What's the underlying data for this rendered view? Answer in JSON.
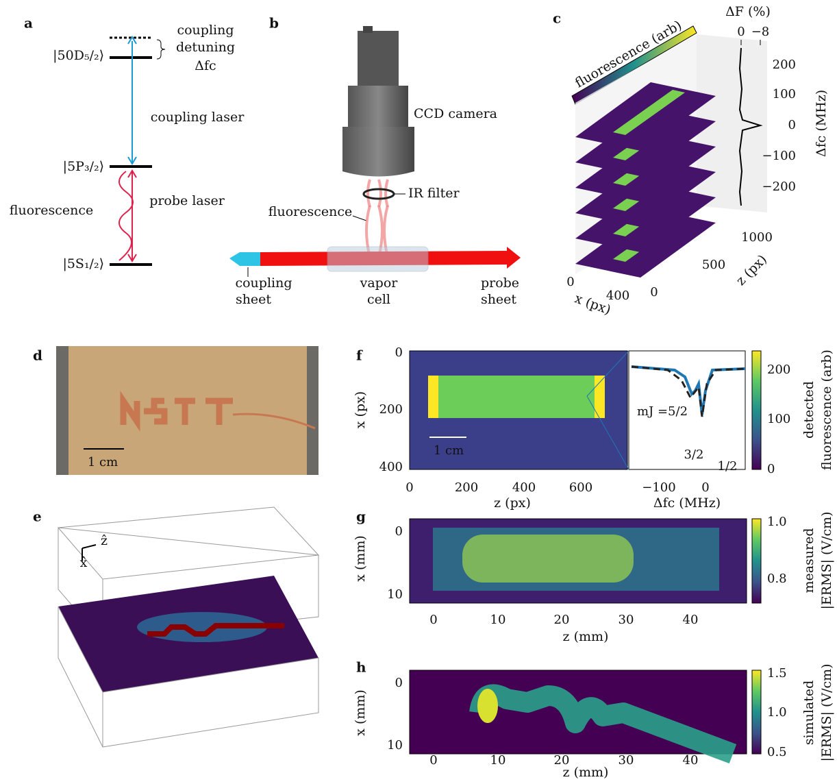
{
  "panels": {
    "a": {
      "label": "a",
      "states": [
        "|50D₅/₂⟩",
        "|5P₃/₂⟩",
        "|5S₁/₂⟩"
      ],
      "detuning_note": [
        "coupling",
        "detuning",
        "Δfc"
      ],
      "coupling_laser": "coupling laser",
      "probe_laser": "probe laser",
      "fluorescence": "fluorescence"
    },
    "b": {
      "label": "b",
      "camera": "CCD camera",
      "filter": "IR filter",
      "fluorescence": "fluorescence",
      "coupling_sheet": [
        "coupling",
        "sheet"
      ],
      "vapor_cell": [
        "vapor",
        "cell"
      ],
      "probe_sheet": [
        "probe",
        "sheet"
      ]
    },
    "c": {
      "label": "c",
      "colorbar_label": "fluorescence (arb)",
      "top_label": "ΔF (%)",
      "top_ticks": [
        "0",
        "−8"
      ],
      "y_ticks": [
        "200",
        "100",
        "0",
        "−100",
        "−200"
      ],
      "y_label": "Δfc (MHz)",
      "z_ticks": [
        "1000",
        "500",
        "0"
      ],
      "z_label": "z (px)",
      "x_ticks": [
        "0",
        "400"
      ],
      "x_label": "x (px)"
    },
    "d": {
      "label": "d",
      "scale_bar": "1 cm"
    },
    "e": {
      "label": "e",
      "z_axis": "ẑ",
      "x_axis": "x̂"
    },
    "f": {
      "label": "f",
      "y_ticks": [
        "0",
        "200",
        "400"
      ],
      "y_label": "x (px)",
      "x_ticks": [
        "0",
        "200",
        "400",
        "600"
      ],
      "x_label": "z (px)",
      "scale_bar": "1 cm",
      "inset_labels": [
        "mJ =5/2",
        "3/2",
        "1/2"
      ],
      "inset_x_ticks": [
        "−100",
        "0"
      ],
      "inset_x_label": "Δfc (MHz)",
      "colorbar_ticks": [
        "200",
        "100",
        "0"
      ],
      "colorbar_label": [
        "detected",
        "fluorescence (arb)"
      ]
    },
    "g": {
      "label": "g",
      "y_ticks": [
        "0",
        "10"
      ],
      "y_label": "x (mm)",
      "x_ticks": [
        "0",
        "10",
        "20",
        "30",
        "40"
      ],
      "x_label": "z (mm)",
      "colorbar_ticks": [
        "1.0",
        "0.8"
      ],
      "colorbar_label": [
        "measured",
        "|ERMS| (V/cm)"
      ]
    },
    "h": {
      "label": "h",
      "y_ticks": [
        "0",
        "10"
      ],
      "y_label": "x (mm)",
      "x_ticks": [
        "0",
        "10",
        "20",
        "30",
        "40"
      ],
      "x_label": "z (mm)",
      "colorbar_ticks": [
        "1.5",
        "1.0",
        "0.5"
      ],
      "colorbar_label": [
        "simulated",
        "|ERMS| (V/cm)"
      ]
    }
  }
}
